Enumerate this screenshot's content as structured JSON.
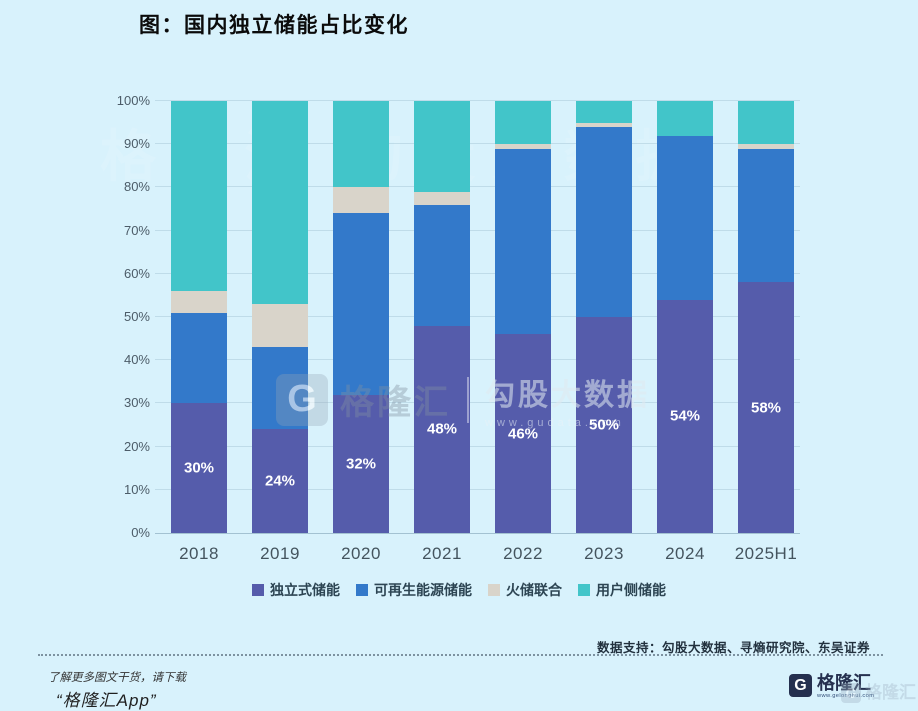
{
  "page": {
    "title": "图：国内独立储能占比变化"
  },
  "chart_data": {
    "type": "bar",
    "stacked": true,
    "title": "图：国内独立储能占比变化",
    "categories": [
      "2018",
      "2019",
      "2020",
      "2021",
      "2022",
      "2023",
      "2024",
      "2025H1"
    ],
    "series": [
      {
        "key": "independent",
        "name": "独立式储能",
        "color": "#555cab",
        "values": [
          30,
          24,
          32,
          48,
          46,
          50,
          54,
          58
        ]
      },
      {
        "key": "renewable",
        "name": "可再生能源储能",
        "color": "#3379ca",
        "values": [
          21,
          19,
          42,
          28,
          43,
          44,
          38,
          31
        ]
      },
      {
        "key": "thermal-hybrid",
        "name": "火储联合",
        "color": "#d9d4ca",
        "values": [
          5,
          10,
          6,
          3,
          1,
          1,
          0,
          1
        ]
      },
      {
        "key": "user-side",
        "name": "用户侧储能",
        "color": "#42c5c9",
        "values": [
          44,
          47,
          20,
          21,
          10,
          5,
          8,
          10
        ]
      }
    ],
    "bar_labels": [
      "30%",
      "24%",
      "32%",
      "48%",
      "46%",
      "50%",
      "54%",
      "58%"
    ],
    "yticks": [
      "0%",
      "10%",
      "20%",
      "30%",
      "40%",
      "50%",
      "60%",
      "70%",
      "80%",
      "90%",
      "100%"
    ],
    "ylim": [
      0,
      100
    ],
    "xlabel": "",
    "ylabel": "",
    "grid": true,
    "legend_position": "bottom"
  },
  "watermarks": {
    "top_faint": "格隆汇 勾股大数据",
    "center_logo_letter": "G",
    "center_brand": "格隆汇",
    "center_product": "勾股大数据",
    "center_url": "www.gudata.com"
  },
  "footer": {
    "data_support": "数据支持：勾股大数据、寻熵研究院、东吴证券",
    "promo_line1": "了解更多图文干货，请下载",
    "promo_line2": "“格隆汇App”",
    "logo_letter": "G",
    "brand": "格隆汇",
    "brand_url": "www.gelonghui.com",
    "brand_watermark": "格隆汇"
  },
  "colors": {
    "background": "#d8f2fc",
    "axis_text": "#4c5c68",
    "navy": "#25304f"
  }
}
